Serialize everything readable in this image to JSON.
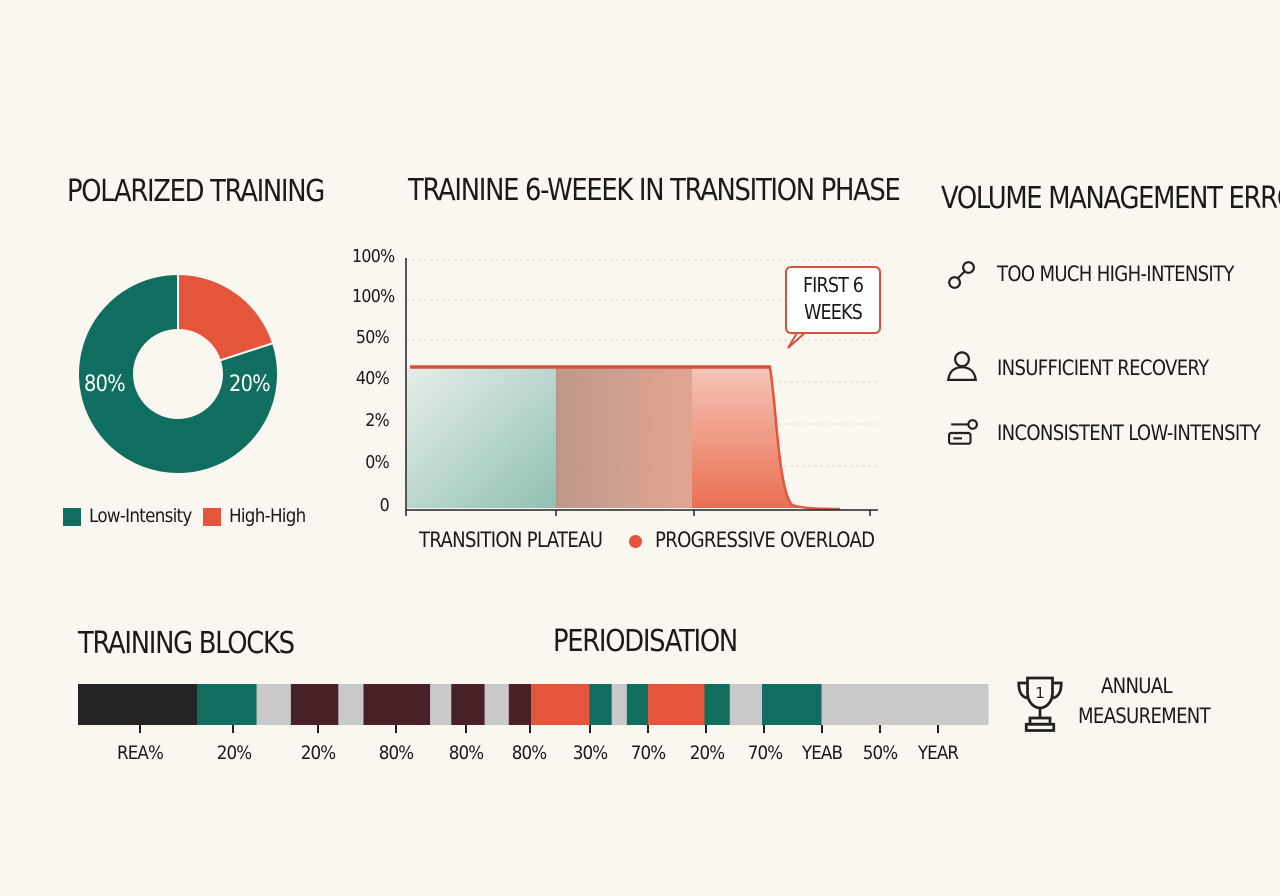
{
  "colors": {
    "teal": "#0f6e5f",
    "coral": "#e4553b",
    "dark": "#242424",
    "maroon": "#4a2027",
    "grey": "#c9c9c9",
    "background": "#faf6f0"
  },
  "polarized": {
    "title": "POLARIZED TRAINING",
    "slices": [
      {
        "label": "80%",
        "value": 80,
        "color": "#0f6e5f"
      },
      {
        "label": "20%",
        "value": 20,
        "color": "#e4553b"
      }
    ],
    "legend": [
      {
        "label": "Low-Intensity",
        "color": "#0f6e5f"
      },
      {
        "label": "High-High",
        "color": "#e4553b"
      }
    ]
  },
  "transition": {
    "title": "TRAININE 6-WEEEK IN TRANSITION PHASE",
    "y_ticks": [
      "100%",
      "100%",
      "50%",
      "40%",
      "2%",
      "0%",
      "0"
    ],
    "callout": {
      "line1": "FIRST 6",
      "line2": "WEEKS"
    },
    "legend": [
      {
        "label": "TRANSITION PLATEAU",
        "marker": "none"
      },
      {
        "label": "PROGRESSIVE OVERLOAD",
        "marker": "dot",
        "color": "#e4553b"
      }
    ]
  },
  "volume": {
    "title": "VOLUME MANAGEMENT ERRORS",
    "items": [
      {
        "label": "TOO MUCH HIGH-INTENSITY",
        "icon": "chain-link-icon"
      },
      {
        "label": "INSUFFICIENT RECOVERY",
        "icon": "person-icon"
      },
      {
        "label": "INCONSISTENT LOW-INTENSITY",
        "icon": "switch-icon"
      }
    ]
  },
  "blocks": {
    "title": "TRAINING BLOCKS",
    "periodisation_title": "PERIODISATION",
    "annual": {
      "line1": "ANNUAL",
      "line2": "MEASUREMENT",
      "icon": "trophy-icon",
      "badge": "1"
    },
    "segments": [
      {
        "color": "#242424",
        "weight": 118
      },
      {
        "color": "#0f6e5f",
        "weight": 59
      },
      {
        "color": "#c9c9c9",
        "weight": 34
      },
      {
        "color": "#4a2027",
        "weight": 47
      },
      {
        "color": "#c9c9c9",
        "weight": 25
      },
      {
        "color": "#4a2027",
        "weight": 66
      },
      {
        "color": "#c9c9c9",
        "weight": 21
      },
      {
        "color": "#4a2027",
        "weight": 33
      },
      {
        "color": "#c9c9c9",
        "weight": 24
      },
      {
        "color": "#4a2027",
        "weight": 22
      },
      {
        "color": "#e4553b",
        "weight": 58
      },
      {
        "color": "#0f6e5f",
        "weight": 22
      },
      {
        "color": "#c9c9c9",
        "weight": 15
      },
      {
        "color": "#0f6e5f",
        "weight": 21
      },
      {
        "color": "#e4553b",
        "weight": 28
      },
      {
        "color": "#e4553b",
        "weight": 28
      },
      {
        "color": "#0f6e5f",
        "weight": 25
      },
      {
        "color": "#c9c9c9",
        "weight": 32
      },
      {
        "color": "#0f6e5f",
        "weight": 59
      },
      {
        "color": "#c9c9c9",
        "weight": 165
      }
    ],
    "tick_labels": [
      "REA%",
      "20%",
      "20%",
      "80%",
      "80%",
      "80%",
      "30%",
      "70%",
      "20%",
      "70%",
      "YEAB",
      "50%",
      "YEAR"
    ]
  },
  "chart_data": [
    {
      "type": "pie",
      "title": "POLARIZED TRAINING",
      "categories": [
        "Low-Intensity",
        "High-High"
      ],
      "values": [
        80,
        20
      ],
      "labels": [
        "80%",
        "20%"
      ]
    },
    {
      "type": "area",
      "title": "TRAININE 6-WEEEK IN TRANSITION PHASE",
      "y_tick_labels": [
        "100%",
        "100%",
        "50%",
        "40%",
        "2%",
        "0%",
        "0"
      ],
      "series": [
        {
          "name": "TRANSITION PLATEAU"
        },
        {
          "name": "PROGRESSIVE OVERLOAD"
        }
      ],
      "annotations": [
        "FIRST 6 WEEKS"
      ],
      "grid": true
    }
  ]
}
